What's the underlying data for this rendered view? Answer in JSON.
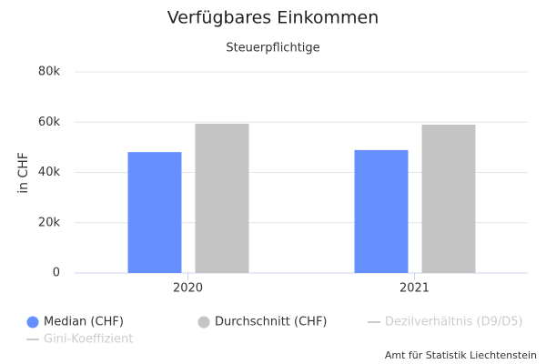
{
  "chart_data": {
    "type": "bar",
    "title": "Verfügbares Einkommen",
    "subtitle": "Steuerpflichtige",
    "y_label": "in CHF",
    "categories": [
      "2020",
      "2021"
    ],
    "series": [
      {
        "name": "Median (CHF)",
        "color": "#6690ff",
        "values": [
          48100,
          48900
        ],
        "visible": true
      },
      {
        "name": "Durchschnitt (CHF)",
        "color": "#c4c4c4",
        "values": [
          59400,
          59000
        ],
        "visible": true
      },
      {
        "name": "Dezilverhältnis (D9/D5)",
        "color": "#cccccc",
        "values": [
          null,
          null
        ],
        "visible": false
      },
      {
        "name": "Gini-Koeffizient",
        "color": "#cccccc",
        "values": [
          null,
          null
        ],
        "visible": false
      }
    ],
    "ylim": [
      0,
      80000
    ],
    "yticks": [
      0,
      {
        "value": 20000,
        "label": "20k"
      },
      {
        "value": 40000,
        "label": "40k"
      },
      {
        "value": 60000,
        "label": "60k"
      },
      {
        "value": 80000,
        "label": "80k"
      }
    ],
    "grid": true,
    "legend": "bottom",
    "credit": "Amt für Statistik Liechtenstein"
  }
}
